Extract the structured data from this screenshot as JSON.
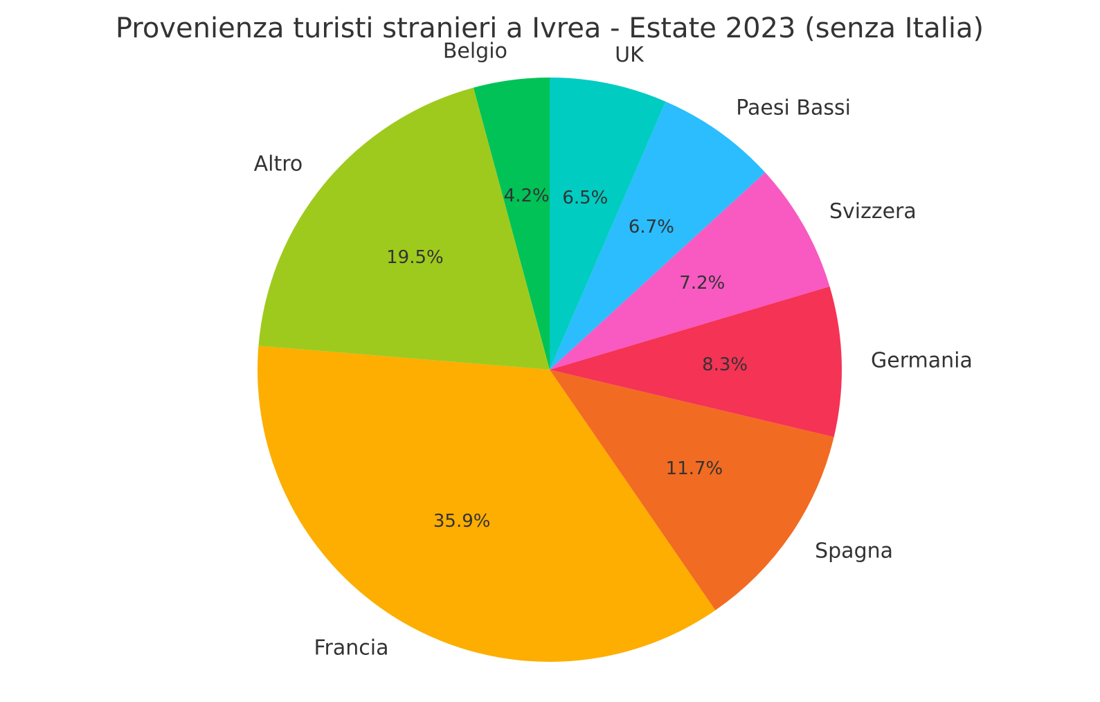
{
  "chart_data": {
    "type": "pie",
    "title": "Provenienza turisti stranieri a Ivrea - Estate 2023 (senza Italia)",
    "start_angle_deg": 90,
    "direction": "counterclockwise",
    "slices": [
      {
        "label": "Belgio",
        "value": 4.2,
        "pct_label": "4.2%",
        "color": "#00C257"
      },
      {
        "label": "Altro",
        "value": 19.5,
        "pct_label": "19.5%",
        "color": "#9ECA1E"
      },
      {
        "label": "Francia",
        "value": 35.9,
        "pct_label": "35.9%",
        "color": "#FDAE00"
      },
      {
        "label": "Spagna",
        "value": 11.7,
        "pct_label": "11.7%",
        "color": "#F26B22"
      },
      {
        "label": "Germania",
        "value": 8.3,
        "pct_label": "8.3%",
        "color": "#F53355"
      },
      {
        "label": "Svizzera",
        "value": 7.2,
        "pct_label": "7.2%",
        "color": "#F85AC1"
      },
      {
        "label": "Paesi Bassi",
        "value": 6.7,
        "pct_label": "6.7%",
        "color": "#2BBDFE"
      },
      {
        "label": "UK",
        "value": 6.5,
        "pct_label": "6.5%",
        "color": "#00CCC2"
      }
    ]
  }
}
